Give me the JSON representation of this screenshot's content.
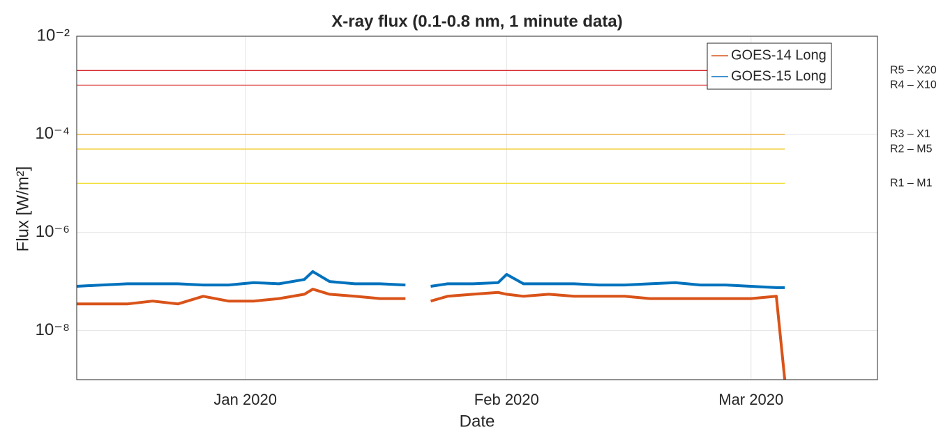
{
  "chart_data": {
    "type": "line",
    "title": "X-ray flux (0.1-0.8 nm, 1 minute data)",
    "xlabel": "Date",
    "ylabel": "Flux [W/m²]",
    "ylog": true,
    "grid": true,
    "legend": "upper right",
    "xlim": [
      "2019-12-12",
      "2020-03-16"
    ],
    "xticks": [
      {
        "value": "2020-01-01",
        "label": "Jan 2020"
      },
      {
        "value": "2020-02-01",
        "label": "Feb 2020"
      },
      {
        "value": "2020-03-01",
        "label": "Mar 2020"
      }
    ],
    "ylim": [
      1e-09,
      0.01
    ],
    "yticks": [
      {
        "value": 0.01,
        "label": "10⁻²"
      },
      {
        "value": 0.0001,
        "label": "10⁻⁴"
      },
      {
        "value": 1e-06,
        "label": "10⁻⁶"
      },
      {
        "value": 1e-08,
        "label": "10⁻⁸"
      }
    ],
    "x": [
      "2019-12-12",
      "2019-12-15",
      "2019-12-18",
      "2019-12-21",
      "2019-12-24",
      "2019-12-27",
      "2019-12-30",
      "2020-01-02",
      "2020-01-05",
      "2020-01-08",
      "2020-01-09",
      "2020-01-11",
      "2020-01-14",
      "2020-01-17",
      "2020-01-20",
      "2020-01-22",
      "2020-01-23",
      "2020-01-25",
      "2020-01-28",
      "2020-01-31",
      "2020-02-01",
      "2020-02-03",
      "2020-02-06",
      "2020-02-09",
      "2020-02-12",
      "2020-02-15",
      "2020-02-18",
      "2020-02-21",
      "2020-02-24",
      "2020-02-27",
      "2020-03-01",
      "2020-03-04",
      "2020-03-05"
    ],
    "series": [
      {
        "name": "GOES-14 Long",
        "color": "#d95319",
        "values": [
          3.5e-08,
          3.5e-08,
          3.5e-08,
          4e-08,
          3.5e-08,
          5e-08,
          4e-08,
          4e-08,
          4.5e-08,
          5.5e-08,
          7e-08,
          5.5e-08,
          5e-08,
          4.5e-08,
          4.5e-08,
          null,
          4e-08,
          5e-08,
          5.5e-08,
          6e-08,
          5.5e-08,
          5e-08,
          5.5e-08,
          5e-08,
          5e-08,
          5e-08,
          4.5e-08,
          4.5e-08,
          4.5e-08,
          4.5e-08,
          4.5e-08,
          5e-08,
          1e-09
        ]
      },
      {
        "name": "GOES-15 Long",
        "color": "#0072bd",
        "values": [
          8e-08,
          8.5e-08,
          9e-08,
          9e-08,
          9e-08,
          8.5e-08,
          8.5e-08,
          9.5e-08,
          9e-08,
          1.1e-07,
          1.6e-07,
          1e-07,
          9e-08,
          9e-08,
          8.5e-08,
          null,
          8e-08,
          9e-08,
          9e-08,
          9.5e-08,
          1.4e-07,
          9e-08,
          9e-08,
          9e-08,
          8.5e-08,
          8.5e-08,
          9e-08,
          9.5e-08,
          8.5e-08,
          8.5e-08,
          8e-08,
          7.5e-08,
          7.5e-08
        ]
      }
    ],
    "thresholds": [
      {
        "label": "R5 – X20",
        "value": 0.002,
        "color": "#d62728"
      },
      {
        "label": "R4 – X10",
        "value": 0.001,
        "color": "#e8686a"
      },
      {
        "label": "R3 – X1",
        "value": 0.0001,
        "color": "#f0b040"
      },
      {
        "label": "R2 – M5",
        "value": 5e-05,
        "color": "#f2d040"
      },
      {
        "label": "R1 – M1",
        "value": 1e-05,
        "color": "#f2e040"
      }
    ]
  }
}
